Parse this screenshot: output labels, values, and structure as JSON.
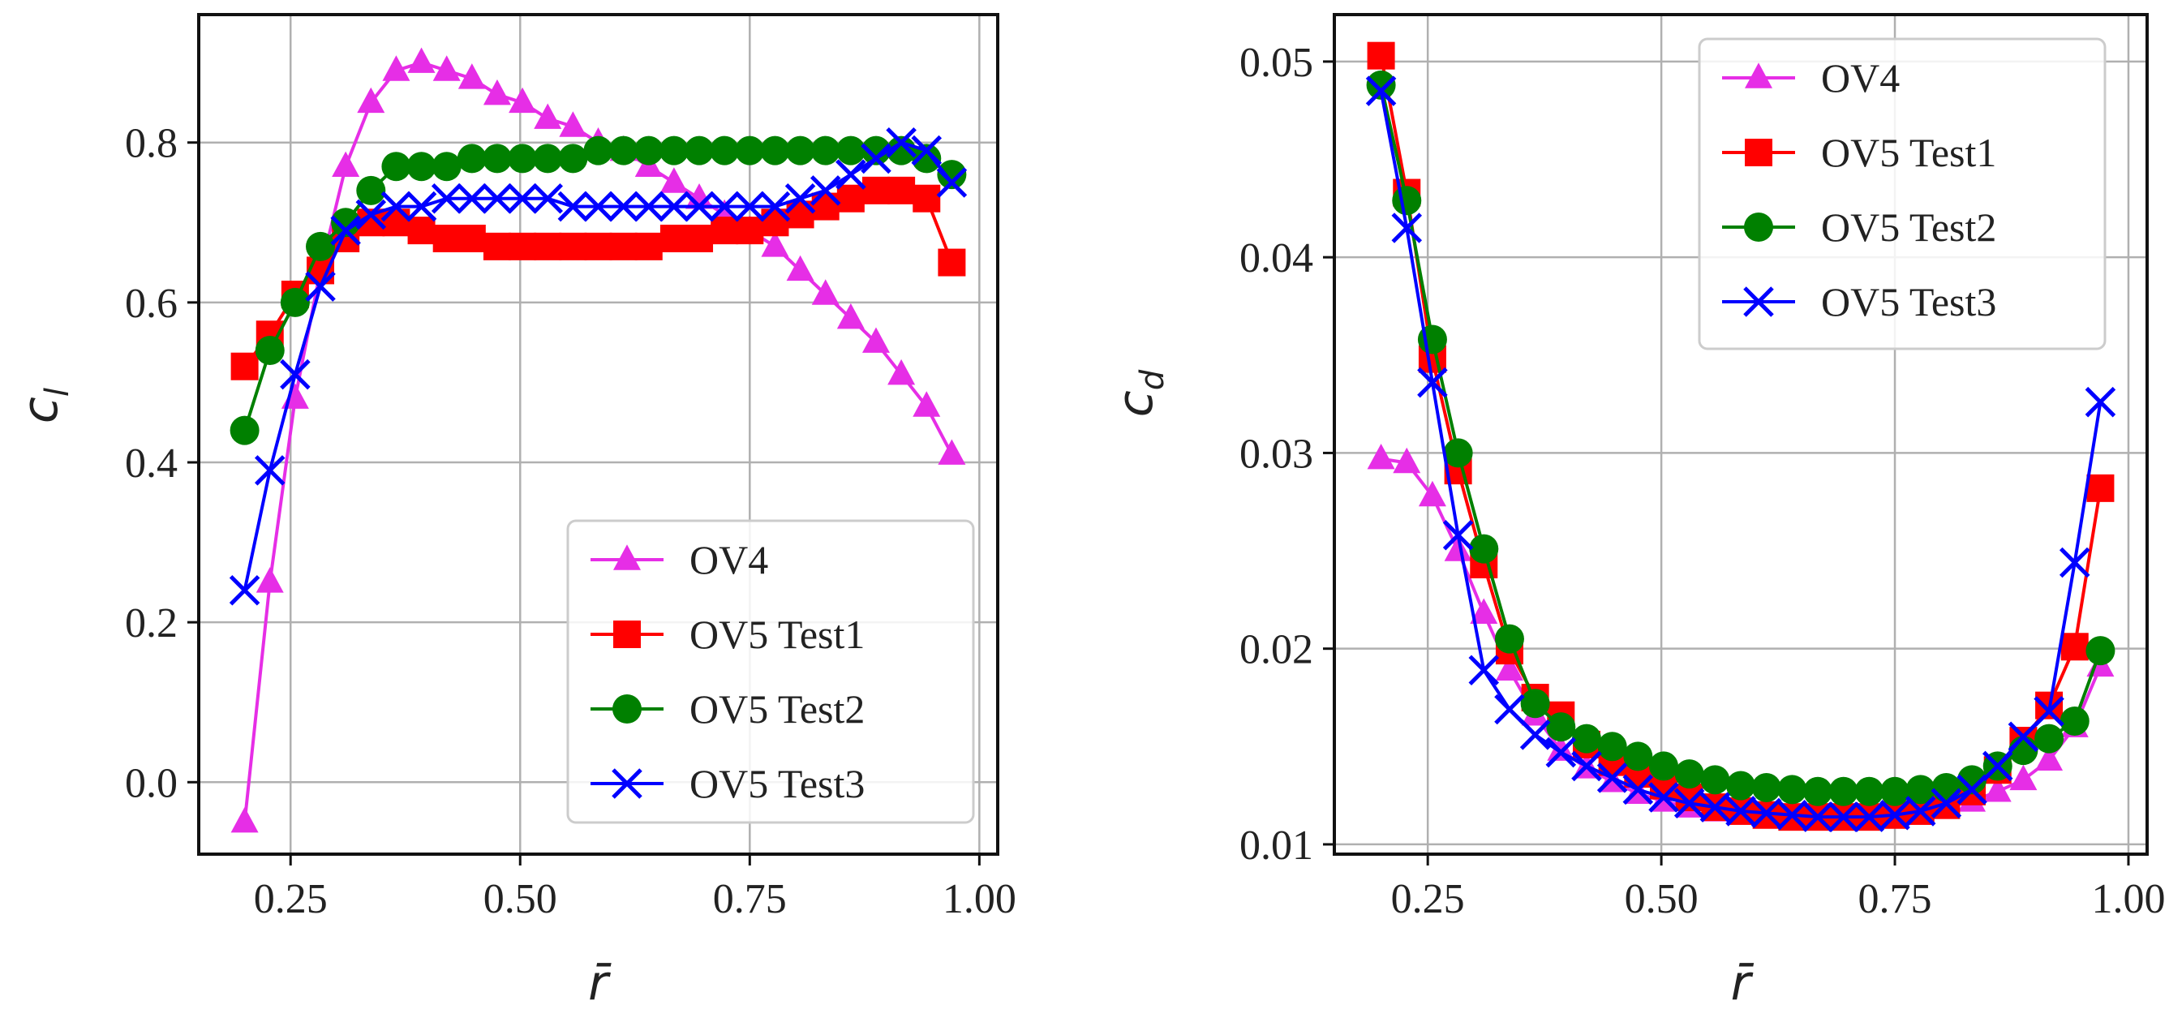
{
  "chart_data": [
    {
      "type": "line",
      "xlabel": "r̄",
      "ylabel": "c",
      "ylabel_sub": "l",
      "xlim": [
        0.15,
        1.02
      ],
      "ylim": [
        -0.09,
        0.96
      ],
      "xticks": [
        0.25,
        0.5,
        0.75,
        1.0
      ],
      "xtick_labels": [
        "0.25",
        "0.50",
        "0.75",
        "1.00"
      ],
      "yticks": [
        0.0,
        0.2,
        0.4,
        0.6,
        0.8
      ],
      "ytick_labels": [
        "0.0",
        "0.2",
        "0.4",
        "0.6",
        "0.8"
      ],
      "grid": true,
      "legend_position": "lower-right",
      "x": [
        0.2,
        0.2275,
        0.255,
        0.2825,
        0.31,
        0.3375,
        0.365,
        0.3925,
        0.42,
        0.4475,
        0.475,
        0.5025,
        0.53,
        0.5575,
        0.585,
        0.6125,
        0.64,
        0.6675,
        0.695,
        0.7225,
        0.75,
        0.7775,
        0.805,
        0.8325,
        0.86,
        0.8875,
        0.915,
        0.9425,
        0.97
      ],
      "series": [
        {
          "name": "OV4",
          "marker": "triangle",
          "color": "#e62ee6",
          "values": [
            -0.05,
            0.25,
            0.48,
            0.64,
            0.77,
            0.85,
            0.89,
            0.9,
            0.89,
            0.88,
            0.86,
            0.85,
            0.83,
            0.82,
            0.8,
            0.79,
            0.77,
            0.75,
            0.73,
            0.71,
            0.69,
            0.67,
            0.64,
            0.61,
            0.58,
            0.55,
            0.51,
            0.47,
            0.41
          ]
        },
        {
          "name": "OV5 Test1",
          "marker": "square",
          "color": "#ff0000",
          "values": [
            0.52,
            0.56,
            0.61,
            0.64,
            0.68,
            0.7,
            0.7,
            0.69,
            0.68,
            0.68,
            0.67,
            0.67,
            0.67,
            0.67,
            0.67,
            0.67,
            0.67,
            0.68,
            0.68,
            0.69,
            0.69,
            0.7,
            0.71,
            0.72,
            0.73,
            0.74,
            0.74,
            0.73,
            0.65
          ]
        },
        {
          "name": "OV5 Test2",
          "marker": "circle",
          "color": "#008000",
          "values": [
            0.44,
            0.54,
            0.6,
            0.67,
            0.7,
            0.74,
            0.77,
            0.77,
            0.77,
            0.78,
            0.78,
            0.78,
            0.78,
            0.78,
            0.79,
            0.79,
            0.79,
            0.79,
            0.79,
            0.79,
            0.79,
            0.79,
            0.79,
            0.79,
            0.79,
            0.79,
            0.79,
            0.78,
            0.76
          ]
        },
        {
          "name": "OV5 Test3",
          "marker": "x",
          "color": "#0000ff",
          "values": [
            0.24,
            0.39,
            0.51,
            0.62,
            0.69,
            0.71,
            0.72,
            0.72,
            0.73,
            0.73,
            0.73,
            0.73,
            0.73,
            0.72,
            0.72,
            0.72,
            0.72,
            0.72,
            0.72,
            0.72,
            0.72,
            0.72,
            0.73,
            0.74,
            0.76,
            0.78,
            0.8,
            0.79,
            0.75
          ]
        }
      ]
    },
    {
      "type": "line",
      "xlabel": "r̄",
      "ylabel": "c",
      "ylabel_sub": "d",
      "xlim": [
        0.15,
        1.02
      ],
      "ylim": [
        0.0095,
        0.0524
      ],
      "xticks": [
        0.25,
        0.5,
        0.75,
        1.0
      ],
      "xtick_labels": [
        "0.25",
        "0.50",
        "0.75",
        "1.00"
      ],
      "yticks": [
        0.01,
        0.02,
        0.03,
        0.04,
        0.05
      ],
      "ytick_labels": [
        "0.01",
        "0.02",
        "0.03",
        "0.04",
        "0.05"
      ],
      "grid": true,
      "legend_position": "upper-right",
      "x": [
        0.2,
        0.2275,
        0.255,
        0.2825,
        0.31,
        0.3375,
        0.365,
        0.3925,
        0.42,
        0.4475,
        0.475,
        0.5025,
        0.53,
        0.5575,
        0.585,
        0.6125,
        0.64,
        0.6675,
        0.695,
        0.7225,
        0.75,
        0.7775,
        0.805,
        0.8325,
        0.86,
        0.8875,
        0.915,
        0.9425,
        0.97
      ],
      "series": [
        {
          "name": "OV4",
          "marker": "triangle",
          "color": "#e62ee6",
          "values": [
            0.0297,
            0.0295,
            0.0278,
            0.025,
            0.0218,
            0.0189,
            0.0166,
            0.0148,
            0.0139,
            0.0132,
            0.0126,
            0.0122,
            0.0119,
            0.0117,
            0.0116,
            0.0115,
            0.0115,
            0.0115,
            0.0115,
            0.0115,
            0.0116,
            0.0117,
            0.0119,
            0.0122,
            0.0127,
            0.0133,
            0.0143,
            0.016,
            0.0191
          ]
        },
        {
          "name": "OV5 Test1",
          "marker": "square",
          "color": "#ff0000",
          "values": [
            0.0503,
            0.0433,
            0.0348,
            0.0291,
            0.0243,
            0.0199,
            0.0175,
            0.0166,
            0.0151,
            0.0142,
            0.0136,
            0.013,
            0.0124,
            0.0119,
            0.0117,
            0.0115,
            0.0114,
            0.0114,
            0.0114,
            0.0114,
            0.0115,
            0.0117,
            0.012,
            0.0127,
            0.0138,
            0.0153,
            0.0171,
            0.0201,
            0.0282
          ]
        },
        {
          "name": "OV5 Test2",
          "marker": "circle",
          "color": "#008000",
          "values": [
            0.0488,
            0.0429,
            0.0358,
            0.03,
            0.0251,
            0.0205,
            0.0172,
            0.016,
            0.0154,
            0.015,
            0.0145,
            0.014,
            0.0136,
            0.0133,
            0.013,
            0.0129,
            0.0128,
            0.0127,
            0.0127,
            0.0127,
            0.0127,
            0.0128,
            0.0129,
            0.0133,
            0.014,
            0.0148,
            0.0154,
            0.0163,
            0.0199
          ]
        },
        {
          "name": "OV5 Test3",
          "marker": "x",
          "color": "#0000ff",
          "values": [
            0.0485,
            0.0415,
            0.0336,
            0.0258,
            0.0189,
            0.0169,
            0.0156,
            0.0147,
            0.014,
            0.0134,
            0.0128,
            0.0124,
            0.0121,
            0.0119,
            0.0117,
            0.0116,
            0.0115,
            0.0114,
            0.0114,
            0.0114,
            0.0115,
            0.0117,
            0.0121,
            0.0128,
            0.014,
            0.0155,
            0.0168,
            0.0244,
            0.0326
          ]
        }
      ]
    }
  ]
}
